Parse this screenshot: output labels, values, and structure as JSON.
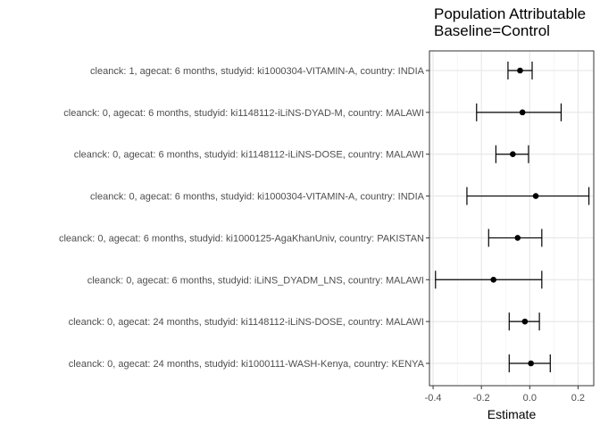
{
  "chart_data": {
    "type": "forest",
    "title_lines": [
      "Population Attributable",
      "Baseline=Control"
    ],
    "xlabel": "Estimate",
    "ylabel": "",
    "xlim": [
      -0.415,
      0.265
    ],
    "xticks": [
      -0.4,
      -0.2,
      0.0,
      0.2
    ],
    "xtick_labels": [
      "-0.4",
      "-0.2",
      "0.0",
      "0.2"
    ],
    "grid": true,
    "legend": "none",
    "rows": [
      {
        "label": "cleanck: 1, agecat: 6 months, studyid: ki1000304-VITAMIN-A, country: INDIA",
        "estimate": -0.04,
        "lower": -0.09,
        "upper": 0.01
      },
      {
        "label": "cleanck: 0, agecat: 6 months, studyid: ki1148112-iLiNS-DYAD-M, country: MALAWI",
        "estimate": -0.03,
        "lower": -0.22,
        "upper": 0.13
      },
      {
        "label": "cleanck: 0, agecat: 6 months, studyid: ki1148112-iLiNS-DOSE, country: MALAWI",
        "estimate": -0.07,
        "lower": -0.14,
        "upper": -0.005
      },
      {
        "label": "cleanck: 0, agecat: 6 months, studyid: ki1000304-VITAMIN-A, country: INDIA",
        "estimate": 0.025,
        "lower": -0.26,
        "upper": 0.245
      },
      {
        "label": "cleanck: 0, agecat: 6 months, studyid: ki1000125-AgaKhanUniv, country: PAKISTAN",
        "estimate": -0.05,
        "lower": -0.17,
        "upper": 0.05
      },
      {
        "label": "cleanck: 0, agecat: 6 months, studyid: iLiNS_DYADM_LNS, country: MALAWI",
        "estimate": -0.15,
        "lower": -0.39,
        "upper": 0.05
      },
      {
        "label": "cleanck: 0, agecat: 24 months, studyid: ki1148112-iLiNS-DOSE, country: MALAWI",
        "estimate": -0.02,
        "lower": -0.085,
        "upper": 0.04
      },
      {
        "label": "cleanck: 0, agecat: 24 months, studyid: ki1000111-WASH-Kenya, country: KENYA",
        "estimate": 0.005,
        "lower": -0.085,
        "upper": 0.085
      }
    ]
  }
}
